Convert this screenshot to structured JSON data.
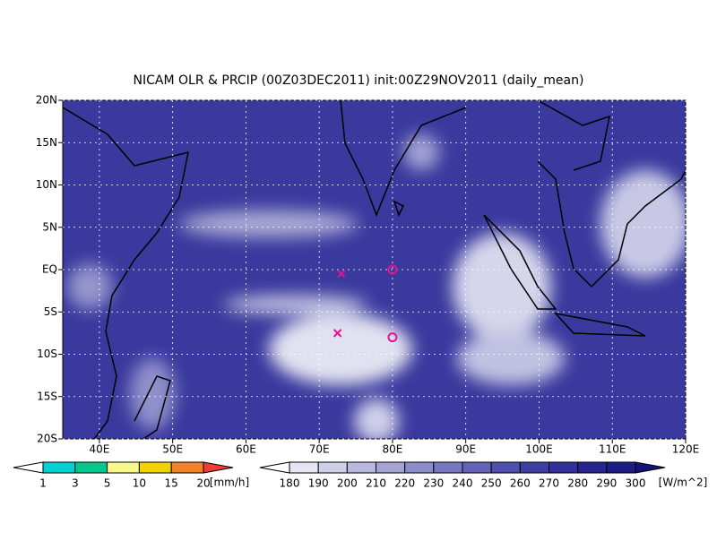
{
  "map": {
    "title": "NICAM OLR & PRCIP (00Z03DEC2011) init:00Z29NOV2011 (daily_mean)",
    "xlim": [
      35,
      120
    ],
    "ylim": [
      -20,
      20
    ],
    "xticks": [
      {
        "value": 40,
        "label": "40E"
      },
      {
        "value": 50,
        "label": "50E"
      },
      {
        "value": 60,
        "label": "60E"
      },
      {
        "value": 70,
        "label": "70E"
      },
      {
        "value": 80,
        "label": "80E"
      },
      {
        "value": 90,
        "label": "90E"
      },
      {
        "value": 100,
        "label": "100E"
      },
      {
        "value": 110,
        "label": "110E"
      },
      {
        "value": 120,
        "label": "120E"
      }
    ],
    "yticks": [
      {
        "value": -20,
        "label": "20S"
      },
      {
        "value": -15,
        "label": "15S"
      },
      {
        "value": -10,
        "label": "10S"
      },
      {
        "value": -5,
        "label": "5S"
      },
      {
        "value": 0,
        "label": "EQ"
      },
      {
        "value": 5,
        "label": "5N"
      },
      {
        "value": 10,
        "label": "10N"
      },
      {
        "value": 15,
        "label": "15N"
      },
      {
        "value": 20,
        "label": "20N"
      }
    ],
    "grid": true,
    "markers": [
      {
        "symbol": "x",
        "lon": 73,
        "lat": -0.5,
        "color": "#e0148c"
      },
      {
        "symbol": "o",
        "lon": 80,
        "lat": 0,
        "color": "#e0148c"
      },
      {
        "symbol": "x",
        "lon": 72.5,
        "lat": -7.5,
        "color": "#e0148c"
      },
      {
        "symbol": "o",
        "lon": 80,
        "lat": -8,
        "color": "#e0148c"
      }
    ],
    "precip_colorbar": {
      "levels": [
        1,
        3,
        5,
        10,
        15,
        20
      ],
      "units": "[mm/h]",
      "colors": [
        "#ffffff",
        "#00d2d2",
        "#00c88c",
        "#f8f88c",
        "#f0d200",
        "#f08228",
        "#f03c3c"
      ]
    },
    "olr_colorbar": {
      "levels": [
        180,
        190,
        200,
        210,
        220,
        230,
        240,
        250,
        260,
        270,
        280,
        290,
        300
      ],
      "units": "[W/m^2]",
      "colors": [
        "#ffffff",
        "#e6e6f2",
        "#cfcfe8",
        "#b9b9de",
        "#a3a3d4",
        "#8d8dca",
        "#7878c0",
        "#6464b6",
        "#5050ac",
        "#3f3fa2",
        "#303098",
        "#25258c",
        "#1c1c82",
        "#141478"
      ]
    }
  }
}
